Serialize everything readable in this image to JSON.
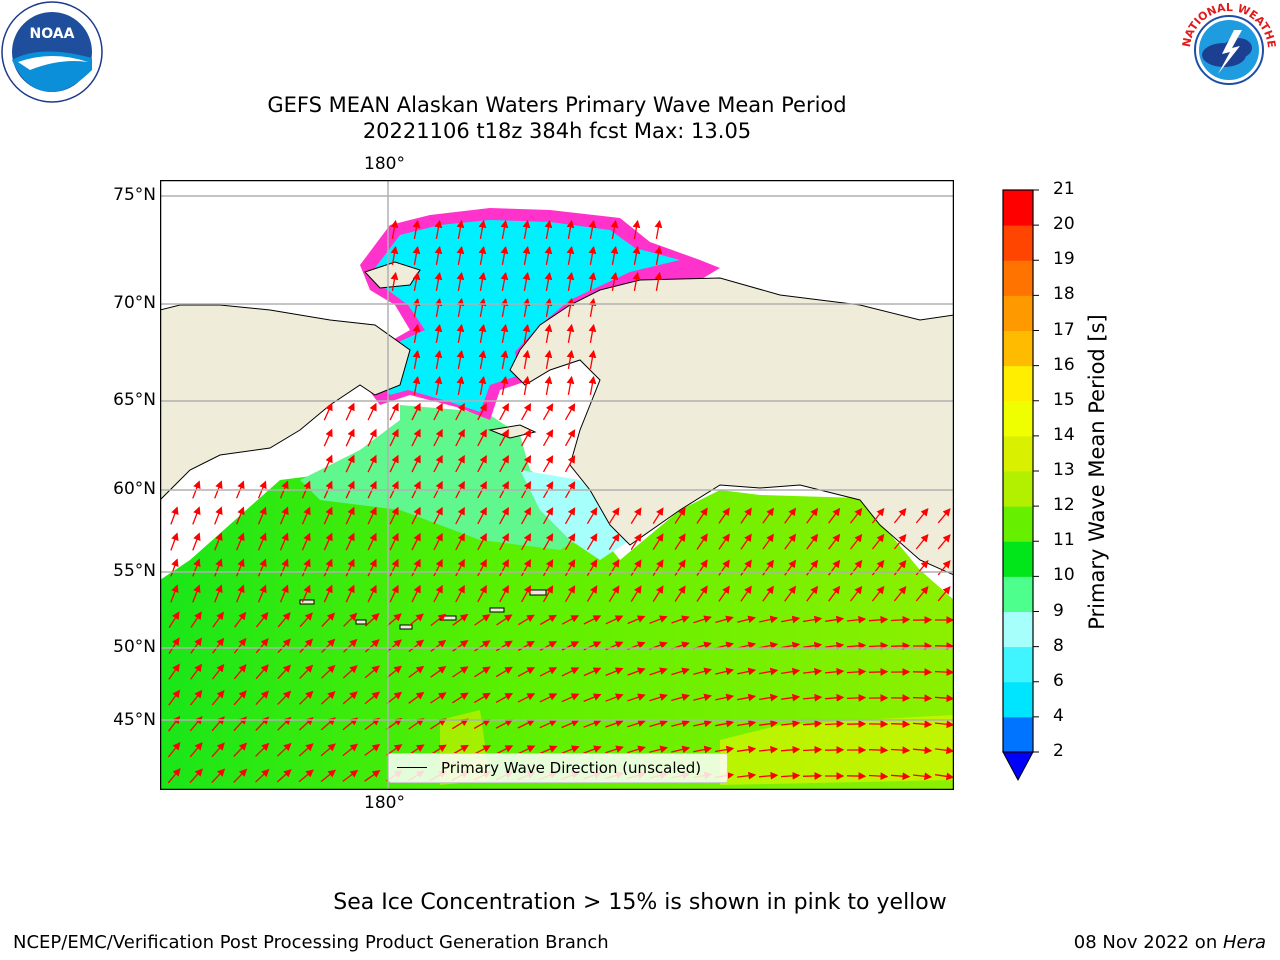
{
  "title": {
    "line1": "GEFS MEAN Alaskan Waters Primary Wave Mean Period",
    "line2": "20221106 t18z 384h fcst   Max: 13.05"
  },
  "logos": {
    "left": {
      "name": "noaa-logo",
      "text": "NOAA",
      "ring_text": "NATIONAL OCEANIC AND ATMOSPHERIC ADMINISTRATION · U.S. DEPARTMENT OF COMMERCE"
    },
    "right": {
      "name": "nws-logo",
      "ring_text": "NATIONAL WEATHER SERVICE"
    }
  },
  "map": {
    "lat_labels": [
      "75°N",
      "70°N",
      "65°N",
      "60°N",
      "55°N",
      "50°N",
      "45°N"
    ],
    "lon_label_top": "180°",
    "lon_label_bottom": "180°",
    "legend_label": "Primary Wave Direction (unscaled)",
    "colors": {
      "land": "#efedda",
      "arrow": "#ff0000",
      "grid": "#b0b0b0",
      "frame": "#000000"
    }
  },
  "colorbar": {
    "label": "Primary Wave Mean Period [s]",
    "ticks": [
      "2",
      "4",
      "6",
      "8",
      "9",
      "10",
      "11",
      "12",
      "13",
      "14",
      "15",
      "16",
      "17",
      "18",
      "19",
      "20",
      "21"
    ],
    "colors": [
      "#0073ff",
      "#00e5ff",
      "#40f5ff",
      "#a6fffa",
      "#4dff8c",
      "#00e61a",
      "#66f000",
      "#b3f000",
      "#d9f000",
      "#f0ff00",
      "#ffee00",
      "#ffbb00",
      "#ff9900",
      "#ff7300",
      "#ff4500",
      "#ff0000"
    ],
    "extend_color": "#0000ff"
  },
  "note": "Sea Ice Concentration > 15% is shown in pink to yellow",
  "footer": {
    "left": "NCEP/EMC/Verification Post Processing Product Generation Branch",
    "right_date": "08 Nov 2022 on ",
    "right_machine": "Hera"
  }
}
